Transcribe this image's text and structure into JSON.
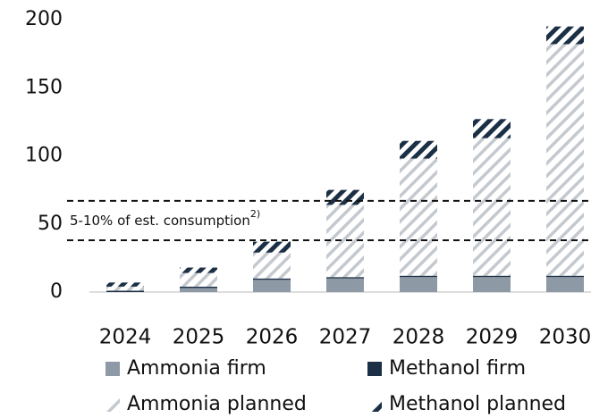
{
  "chart_data": {
    "type": "stacked_bar",
    "categories": [
      "2024",
      "2025",
      "2026",
      "2027",
      "2028",
      "2029",
      "2030"
    ],
    "series": [
      {
        "name": "Ammonia firm",
        "color": "#8d99a5",
        "hatched": false,
        "values": [
          0,
          3,
          9,
          10,
          11,
          11,
          11
        ]
      },
      {
        "name": "Methanol firm",
        "color": "#1b2f45",
        "hatched": false,
        "values": [
          1,
          1,
          1,
          1,
          1,
          1,
          1
        ]
      },
      {
        "name": "Ammonia planned",
        "color": "#c4c9cf",
        "hatched": true,
        "values": [
          3,
          10,
          19,
          53,
          86,
          101,
          170
        ]
      },
      {
        "name": "Methanol planned",
        "color": "#1b2f45",
        "hatched": true,
        "values": [
          3,
          4,
          8,
          11,
          13,
          14,
          13
        ]
      }
    ],
    "ylim": [
      0,
      200
    ],
    "yticks": [
      0,
      50,
      100,
      150,
      200
    ],
    "reference_lines": [
      38,
      67
    ],
    "annotation": "5-10% of est. consumption",
    "annotation_note": "2)"
  }
}
